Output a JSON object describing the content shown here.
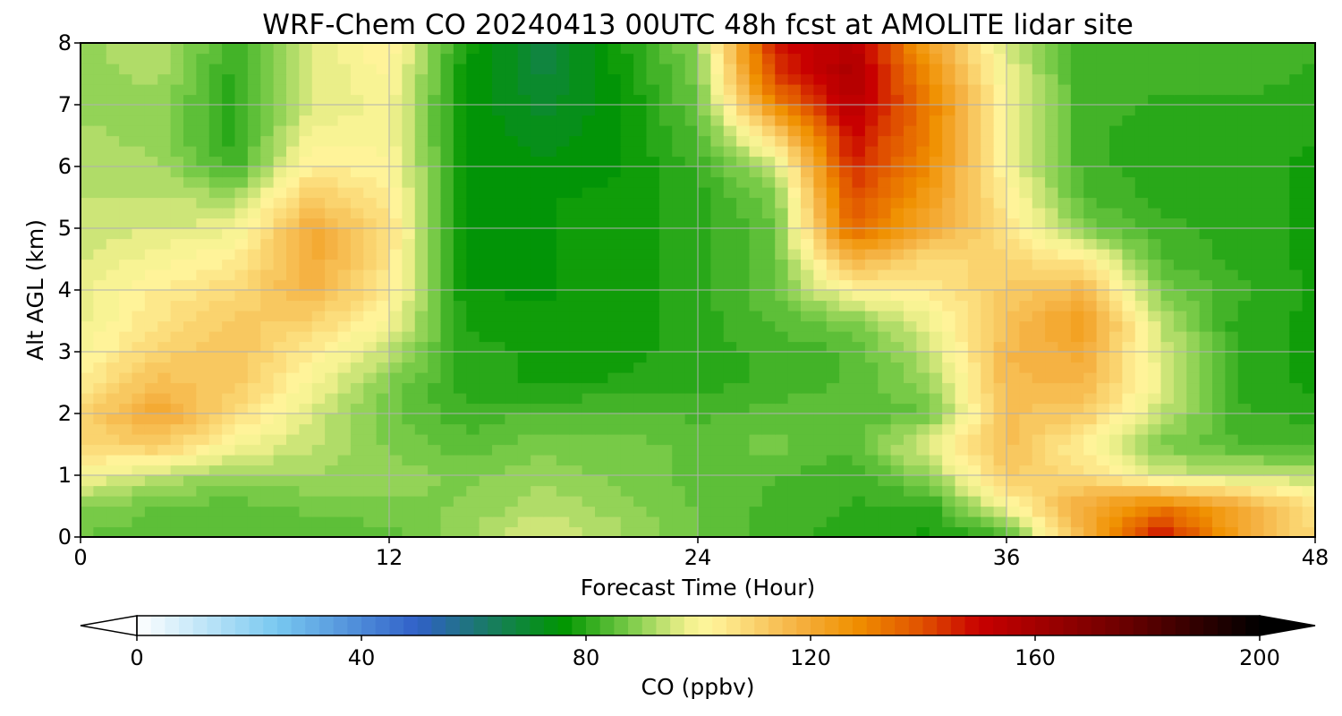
{
  "chart_data": {
    "type": "heatmap",
    "title": "WRF-Chem CO  20240413 00UTC 48h fcst at AMOLITE lidar site",
    "xlabel": "Forecast Time (Hour)",
    "ylabel": "Alt AGL (km)",
    "xlim": [
      0,
      48
    ],
    "ylim": [
      0,
      8
    ],
    "xticks": [
      "0",
      "12",
      "24",
      "36",
      "48"
    ],
    "yticks": [
      "0",
      "1",
      "2",
      "3",
      "4",
      "5",
      "6",
      "7",
      "8"
    ],
    "grid": true,
    "x": [
      0,
      3,
      6,
      9,
      12,
      15,
      18,
      21,
      24,
      27,
      30,
      33,
      36,
      39,
      42,
      45,
      48
    ],
    "y": [
      0,
      0.5,
      1,
      1.5,
      2,
      2.5,
      3,
      3.5,
      4,
      4.5,
      5,
      5.5,
      6,
      6.5,
      7,
      7.5,
      8
    ],
    "z": [
      [
        86,
        85,
        84,
        84,
        85,
        91,
        97,
        92,
        86,
        82,
        80,
        78,
        82,
        118,
        150,
        122,
        108
      ],
      [
        89,
        86,
        85,
        87,
        88,
        89,
        93,
        90,
        86,
        83,
        81,
        80,
        100,
        120,
        132,
        120,
        106
      ],
      [
        100,
        94,
        90,
        91,
        90,
        88,
        90,
        88,
        85,
        84,
        82,
        90,
        112,
        108,
        96,
        94,
        93
      ],
      [
        108,
        112,
        100,
        94,
        88,
        85,
        88,
        87,
        86,
        87,
        84,
        98,
        115,
        102,
        88,
        84,
        83
      ],
      [
        110,
        121,
        108,
        96,
        87,
        82,
        84,
        84,
        83,
        85,
        85,
        86,
        114,
        112,
        94,
        82,
        80
      ],
      [
        104,
        115,
        112,
        100,
        88,
        80,
        78,
        79,
        80,
        82,
        84,
        90,
        116,
        116,
        98,
        80,
        78
      ],
      [
        100,
        110,
        114,
        104,
        94,
        80,
        78,
        78,
        80,
        82,
        84,
        94,
        116,
        120,
        96,
        80,
        78
      ],
      [
        98,
        106,
        112,
        110,
        100,
        78,
        77,
        77,
        80,
        84,
        88,
        98,
        114,
        124,
        94,
        80,
        78
      ],
      [
        98,
        104,
        108,
        118,
        104,
        76,
        76,
        77,
        80,
        86,
        102,
        104,
        112,
        116,
        88,
        82,
        78
      ],
      [
        96,
        100,
        104,
        120,
        106,
        75,
        76,
        77,
        80,
        86,
        118,
        108,
        110,
        104,
        84,
        80,
        78
      ],
      [
        95,
        96,
        98,
        120,
        107,
        75,
        76,
        77,
        80,
        86,
        136,
        120,
        106,
        88,
        82,
        80,
        78
      ],
      [
        94,
        94,
        92,
        112,
        104,
        75,
        76,
        77,
        80,
        88,
        140,
        124,
        104,
        84,
        80,
        80,
        78
      ],
      [
        92,
        92,
        82,
        104,
        102,
        76,
        74,
        76,
        82,
        94,
        146,
        128,
        100,
        82,
        80,
        80,
        78
      ],
      [
        92,
        90,
        80,
        100,
        100,
        76,
        72,
        76,
        84,
        108,
        150,
        130,
        100,
        82,
        80,
        80,
        79
      ],
      [
        90,
        90,
        80,
        96,
        100,
        76,
        70,
        76,
        86,
        130,
        155,
        132,
        100,
        82,
        81,
        81,
        80
      ],
      [
        90,
        92,
        80,
        96,
        102,
        76,
        68,
        77,
        88,
        142,
        158,
        128,
        98,
        82,
        82,
        82,
        81
      ],
      [
        90,
        94,
        82,
        96,
        104,
        78,
        67,
        78,
        90,
        148,
        155,
        122,
        96,
        82,
        82,
        82,
        82
      ]
    ],
    "colorbar": {
      "label": "CO  (ppbv)",
      "min": 0,
      "max": 200,
      "ticks": [
        "0",
        "40",
        "80",
        "120",
        "160",
        "200"
      ],
      "extend": "both",
      "colors": [
        {
          "v": 0,
          "c": "#ffffff"
        },
        {
          "v": 25,
          "c": "#78c8f0"
        },
        {
          "v": 50,
          "c": "#3060c8"
        },
        {
          "v": 62,
          "c": "#1a7a68"
        },
        {
          "v": 76,
          "c": "#009600"
        },
        {
          "v": 88,
          "c": "#7ccc4a"
        },
        {
          "v": 98,
          "c": "#f0f08c"
        },
        {
          "v": 102,
          "c": "#fff59c"
        },
        {
          "v": 118,
          "c": "#f5b040"
        },
        {
          "v": 128,
          "c": "#f09000"
        },
        {
          "v": 140,
          "c": "#e05000"
        },
        {
          "v": 150,
          "c": "#c80000"
        },
        {
          "v": 175,
          "c": "#6e0000"
        },
        {
          "v": 200,
          "c": "#000000"
        }
      ]
    }
  }
}
